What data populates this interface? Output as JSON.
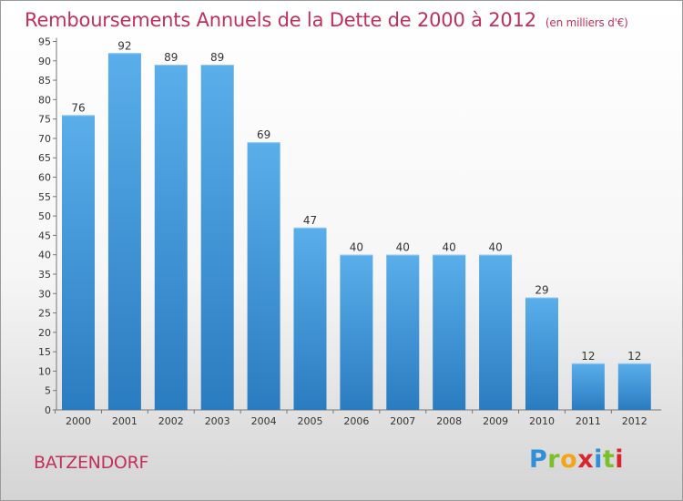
{
  "header": {
    "title": "Remboursements Annuels de la Dette de 2000 à 2012",
    "unit": "(en milliers d'€)"
  },
  "footer": {
    "commune": "BATZENDORF",
    "logo_text": "Proxiti"
  },
  "colors": {
    "title": "#c0305a",
    "bar_top": "#5aaeea",
    "bar_bottom": "#2a7cc0"
  },
  "chart_data": {
    "type": "bar",
    "categories": [
      "2000",
      "2001",
      "2002",
      "2003",
      "2004",
      "2005",
      "2006",
      "2007",
      "2008",
      "2009",
      "2010",
      "2011",
      "2012"
    ],
    "values": [
      76,
      92,
      89,
      89,
      69,
      47,
      40,
      40,
      40,
      40,
      29,
      12,
      12
    ],
    "ylim": [
      0,
      95
    ],
    "ytick_step": 5,
    "grid": false
  }
}
